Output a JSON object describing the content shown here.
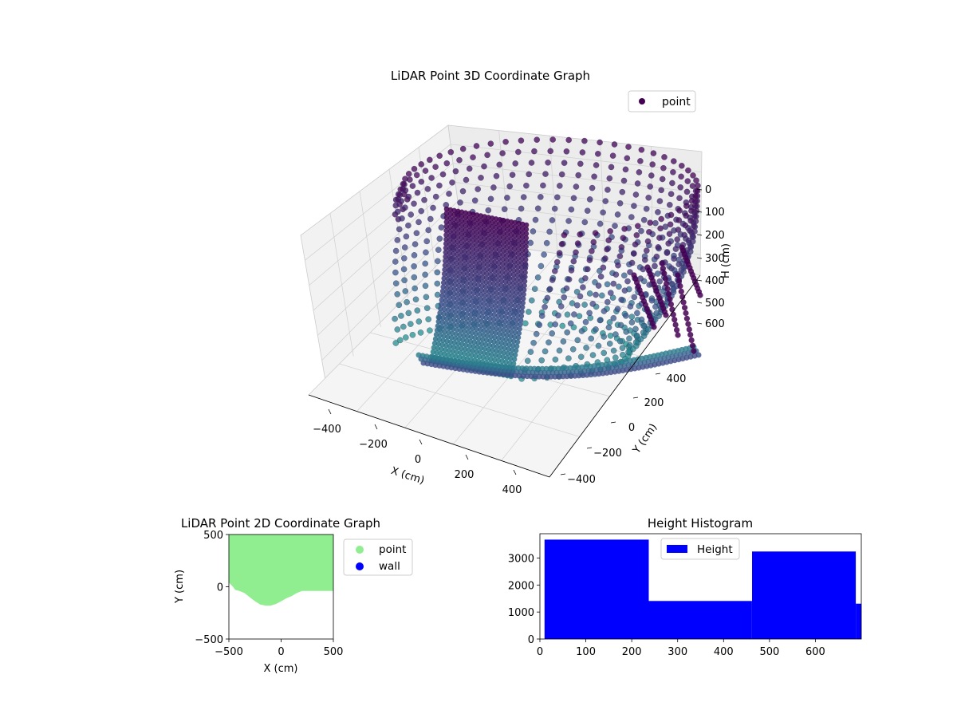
{
  "colors": {
    "point_dark": "#440154",
    "point_mid": "#3b528b",
    "point_teal": "#21908d",
    "pane": "#f2f2f2",
    "point_2d": "#90ee90",
    "wall": "#0000ff",
    "hist_bar": "#0000ff"
  },
  "chart_data": [
    {
      "type": "scatter",
      "title": "LiDAR Point 3D Coordinate Graph",
      "xlabel": "X (cm)",
      "ylabel": "Y (cm)",
      "zlabel": "H (cm)",
      "x_ticks": [
        "−400",
        "−200",
        "0",
        "200",
        "400"
      ],
      "y_ticks": [
        "−400",
        "−200",
        "0",
        "200",
        "400"
      ],
      "z_ticks": [
        "0",
        "100",
        "200",
        "300",
        "400",
        "500",
        "600"
      ],
      "legend": [
        "point"
      ],
      "legend_position": "top-right",
      "colormap": "viridis",
      "grid": true
    },
    {
      "type": "scatter",
      "title": "LiDAR Point 2D Coordinate Graph",
      "xlabel": "X (cm)",
      "ylabel": "Y (cm)",
      "xlim": [
        -500,
        500
      ],
      "ylim": [
        -500,
        500
      ],
      "x_ticks": [
        "−500",
        "0",
        "500"
      ],
      "y_ticks": [
        "−500",
        "0",
        "500"
      ],
      "legend": [
        "point",
        "wall"
      ],
      "legend_position": "outside-right",
      "point_region_boundary": [
        [
          -500,
          40
        ],
        [
          -480,
          20
        ],
        [
          -460,
          0
        ],
        [
          -440,
          -30
        ],
        [
          -400,
          -40
        ],
        [
          -350,
          -60
        ],
        [
          -300,
          -100
        ],
        [
          -250,
          -140
        ],
        [
          -200,
          -170
        ],
        [
          -150,
          -180
        ],
        [
          -100,
          -180
        ],
        [
          -50,
          -165
        ],
        [
          0,
          -140
        ],
        [
          50,
          -110
        ],
        [
          100,
          -90
        ],
        [
          150,
          -60
        ],
        [
          200,
          -40
        ],
        [
          300,
          -40
        ],
        [
          400,
          -40
        ],
        [
          500,
          -40
        ]
      ]
    },
    {
      "type": "bar",
      "title": "Height Histogram",
      "xlim": [
        0,
        700
      ],
      "ylim": [
        0,
        3900
      ],
      "x_ticks": [
        "0",
        "100",
        "200",
        "300",
        "400",
        "500",
        "600"
      ],
      "y_ticks": [
        "0",
        "1000",
        "2000",
        "3000"
      ],
      "legend": [
        "Height"
      ],
      "legend_position": "upper-center",
      "bins": [
        {
          "start": 10,
          "end": 237,
          "value": 3680
        },
        {
          "start": 237,
          "end": 462,
          "value": 1410
        },
        {
          "start": 462,
          "end": 688,
          "value": 3240
        },
        {
          "start": 688,
          "end": 700,
          "value": 1310
        }
      ]
    }
  ]
}
